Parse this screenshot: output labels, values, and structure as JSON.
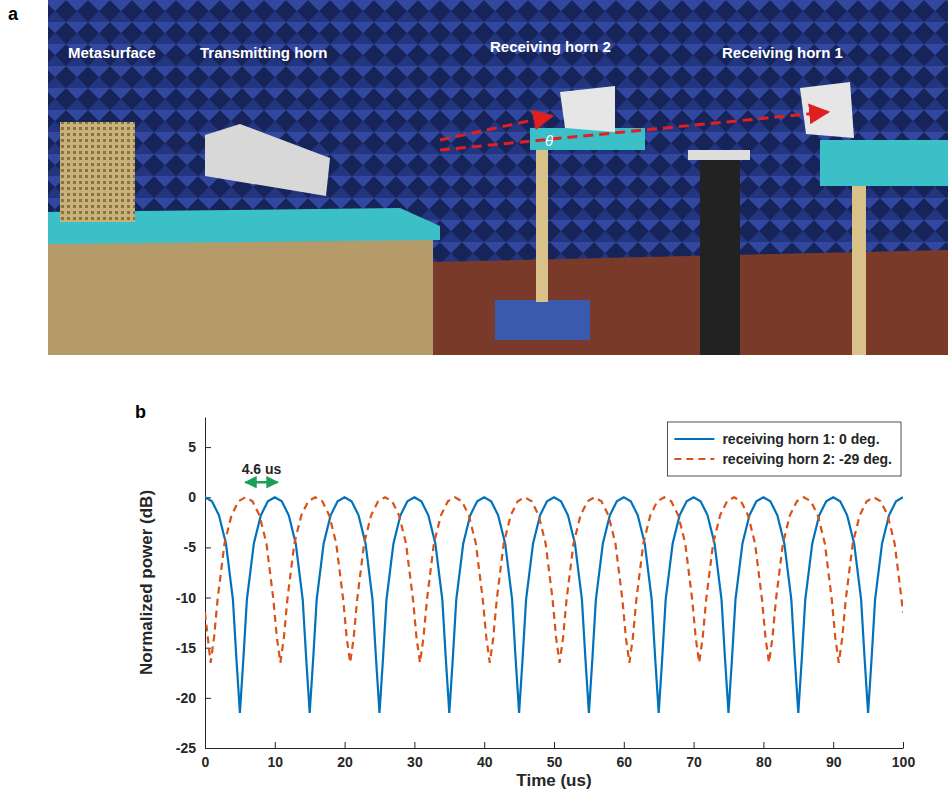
{
  "photo": {
    "label": "a",
    "items": [
      "Metasurface",
      "Transmitting horn",
      "Receiving horn 2",
      "Receiving horn 1"
    ],
    "angle_label": "θ"
  },
  "chart_data": {
    "type": "line",
    "panel_label": "b",
    "x_label": "Time (us)",
    "y_label": "Normalized power (dB)",
    "xlim": [
      0,
      100
    ],
    "ylim": [
      -25,
      8
    ],
    "xticks": [
      0,
      10,
      20,
      30,
      40,
      50,
      60,
      70,
      80,
      90,
      100
    ],
    "yticks": [
      -25,
      -20,
      -15,
      -10,
      -5,
      0,
      5
    ],
    "grid": false,
    "legend": "upper right",
    "annotations": [
      {
        "text": "4.6 us",
        "x_start": 5.8,
        "x_end": 10.4,
        "y": 1.5,
        "color": "#1a9e5a"
      }
    ],
    "series": [
      {
        "name": "receiving horn 1: 0 deg.",
        "color": "#0072bd",
        "line_style": "solid",
        "x": [
          0,
          1,
          2,
          3,
          4,
          4.5,
          5,
          5.5,
          6,
          7,
          8,
          9,
          10,
          11,
          12,
          13,
          14,
          14.5,
          15,
          15.5,
          16,
          17,
          18,
          19,
          20,
          21,
          22,
          23,
          24,
          24.5,
          25,
          25.5,
          26,
          27,
          28,
          29,
          30,
          31,
          32,
          33,
          34,
          34.5,
          35,
          35.5,
          36,
          37,
          38,
          39,
          40,
          41,
          42,
          43,
          44,
          44.5,
          45,
          45.5,
          46,
          47,
          48,
          49,
          50,
          51,
          52,
          53,
          54,
          54.5,
          55,
          55.5,
          56,
          57,
          58,
          59,
          60,
          61,
          62,
          63,
          64,
          64.5,
          65,
          65.5,
          66,
          67,
          68,
          69,
          70,
          71,
          72,
          73,
          74,
          74.5,
          75,
          75.5,
          76,
          77,
          78,
          79,
          80,
          81,
          82,
          83,
          84,
          84.5,
          85,
          85.5,
          86,
          87,
          88,
          89,
          90,
          91,
          92,
          93,
          94,
          94.5,
          95,
          95.5,
          96,
          97,
          98,
          99,
          100
        ],
        "values": [
          0,
          -0.4,
          -1.8,
          -4.6,
          -10.2,
          -16.1,
          -21.5,
          -16.1,
          -10.2,
          -4.6,
          -1.8,
          -0.4,
          0,
          -0.4,
          -1.8,
          -4.6,
          -10.2,
          -16.1,
          -21.5,
          -16.1,
          -10.2,
          -4.6,
          -1.8,
          -0.4,
          0,
          -0.4,
          -1.8,
          -4.6,
          -10.2,
          -16.1,
          -21.5,
          -16.1,
          -10.2,
          -4.6,
          -1.8,
          -0.4,
          0,
          -0.4,
          -1.8,
          -4.6,
          -10.2,
          -16.1,
          -21.5,
          -16.1,
          -10.2,
          -4.6,
          -1.8,
          -0.4,
          0,
          -0.4,
          -1.8,
          -4.6,
          -10.2,
          -16.1,
          -21.5,
          -16.1,
          -10.2,
          -4.6,
          -1.8,
          -0.4,
          0,
          -0.4,
          -1.8,
          -4.6,
          -10.2,
          -16.1,
          -21.5,
          -16.1,
          -10.2,
          -4.6,
          -1.8,
          -0.4,
          0,
          -0.4,
          -1.8,
          -4.6,
          -10.2,
          -16.1,
          -21.5,
          -16.1,
          -10.2,
          -4.6,
          -1.8,
          -0.4,
          0,
          -0.4,
          -1.8,
          -4.6,
          -10.2,
          -16.1,
          -21.5,
          -16.1,
          -10.2,
          -4.6,
          -1.8,
          -0.4,
          0,
          -0.4,
          -1.8,
          -4.6,
          -10.2,
          -16.1,
          -21.5,
          -16.1,
          -10.2,
          -4.6,
          -1.8,
          -0.4,
          0,
          -0.4,
          -1.8,
          -4.6,
          -10.2,
          -16.1,
          -21.5,
          -16.1,
          -10.2,
          -4.6,
          -1.8,
          -0.4,
          0
        ]
      },
      {
        "name": "receiving horn 2: -29 deg.",
        "color": "#d95319",
        "line_style": "dashed",
        "x": [
          0,
          0.8,
          1.3,
          1.8,
          2.8,
          3.8,
          4.8,
          5.8,
          6.8,
          7.8,
          8.8,
          9.8,
          10.3,
          10.8,
          11.3,
          11.8,
          12.8,
          13.8,
          14.8,
          15.8,
          16.8,
          17.8,
          18.8,
          19.8,
          20.3,
          20.8,
          21.3,
          21.8,
          22.8,
          23.8,
          24.8,
          25.8,
          26.8,
          27.8,
          28.8,
          29.8,
          30.3,
          30.8,
          31.3,
          31.8,
          32.8,
          33.8,
          34.8,
          35.8,
          36.8,
          37.8,
          38.8,
          39.8,
          40.3,
          40.8,
          41.3,
          41.8,
          42.8,
          43.8,
          44.8,
          45.8,
          46.8,
          47.8,
          48.8,
          49.8,
          50.3,
          50.8,
          51.3,
          51.8,
          52.8,
          53.8,
          54.8,
          55.8,
          56.8,
          57.8,
          58.8,
          59.8,
          60.3,
          60.8,
          61.3,
          61.8,
          62.8,
          63.8,
          64.8,
          65.8,
          66.8,
          67.8,
          68.8,
          69.8,
          70.3,
          70.8,
          71.3,
          71.8,
          72.8,
          73.8,
          74.8,
          75.8,
          76.8,
          77.8,
          78.8,
          79.8,
          80.3,
          80.8,
          81.3,
          81.8,
          82.8,
          83.8,
          84.8,
          85.8,
          86.8,
          87.8,
          88.8,
          89.8,
          90.3,
          90.8,
          91.3,
          91.8,
          92.8,
          93.8,
          94.8,
          95.8,
          96.8,
          97.8,
          98.8,
          99.8,
          100
        ],
        "values": [
          -11.5,
          -16.5,
          -14,
          -10.2,
          -4.6,
          -1.8,
          -0.4,
          0,
          -0.4,
          -1.8,
          -4.6,
          -10.2,
          -14,
          -16.5,
          -14,
          -10.2,
          -4.6,
          -1.8,
          -0.4,
          0,
          -0.4,
          -1.8,
          -4.6,
          -10.2,
          -14,
          -16.5,
          -14,
          -10.2,
          -4.6,
          -1.8,
          -0.4,
          0,
          -0.4,
          -1.8,
          -4.6,
          -10.2,
          -14,
          -16.5,
          -14,
          -10.2,
          -4.6,
          -1.8,
          -0.4,
          0,
          -0.4,
          -1.8,
          -4.6,
          -10.2,
          -14,
          -16.5,
          -14,
          -10.2,
          -4.6,
          -1.8,
          -0.4,
          0,
          -0.4,
          -1.8,
          -4.6,
          -10.2,
          -14,
          -16.5,
          -14,
          -10.2,
          -4.6,
          -1.8,
          -0.4,
          0,
          -0.4,
          -1.8,
          -4.6,
          -10.2,
          -14,
          -16.5,
          -14,
          -10.2,
          -4.6,
          -1.8,
          -0.4,
          0,
          -0.4,
          -1.8,
          -4.6,
          -10.2,
          -14,
          -16.5,
          -14,
          -10.2,
          -4.6,
          -1.8,
          -0.4,
          0,
          -0.4,
          -1.8,
          -4.6,
          -10.2,
          -14,
          -16.5,
          -14,
          -10.2,
          -4.6,
          -1.8,
          -0.4,
          0,
          -0.4,
          -1.8,
          -4.6,
          -10.2,
          -14,
          -16.5,
          -14,
          -10.2,
          -4.6,
          -1.8,
          -0.4,
          0,
          -0.4,
          -1.8,
          -4.6,
          -10.2,
          -11.5
        ]
      }
    ]
  }
}
